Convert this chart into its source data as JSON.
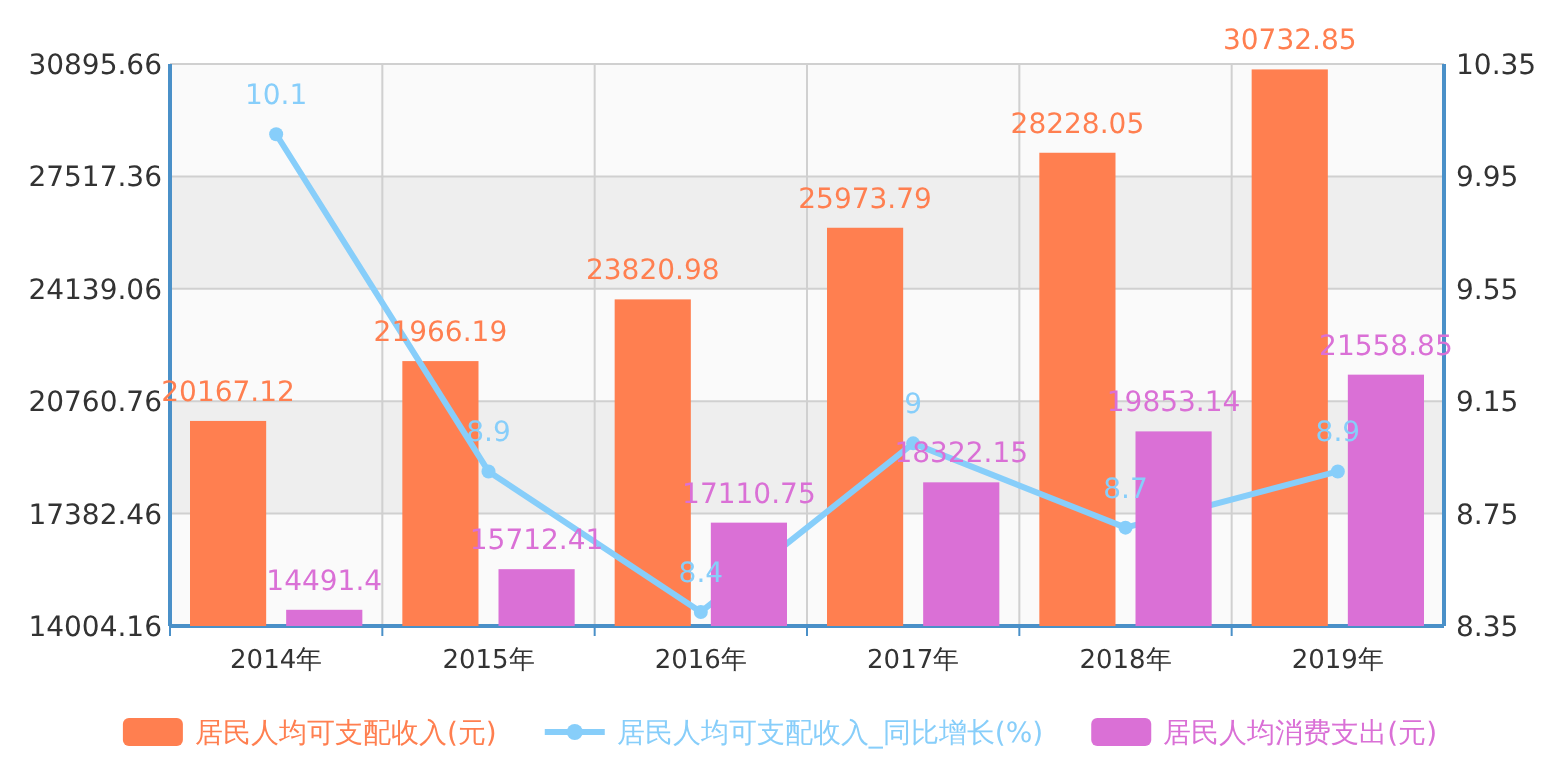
{
  "chart_data": {
    "type": "bar",
    "categories": [
      "2014年",
      "2015年",
      "2016年",
      "2017年",
      "2018年",
      "2019年"
    ],
    "series": [
      {
        "name": "居民人均可支配收入(元)",
        "color": "#ff7f50",
        "values": [
          20167.12,
          21966.19,
          23820.98,
          25973.79,
          28228.05,
          30732.85
        ]
      },
      {
        "name": "居民人均可支配收入_同比增长(%)",
        "type": "line",
        "axis": "y2",
        "marker": "circle",
        "color": "#87cefa",
        "values": [
          10.1,
          8.9,
          8.4,
          9,
          8.7,
          8.9
        ]
      },
      {
        "name": "居民人均消费支出(元)",
        "color": "#da70d6",
        "values": [
          14491.4,
          15712.41,
          17110.75,
          18322.15,
          19853.14,
          21558.85
        ]
      }
    ],
    "ylim": [
      14004.16,
      30895.66
    ],
    "yticks": [
      14004.16,
      17382.46,
      20760.76,
      24139.06,
      27517.36,
      30895.66
    ],
    "y2lim": [
      8.35,
      10.35
    ],
    "y2ticks": [
      8.35,
      8.75,
      9.15,
      9.55,
      9.95,
      10.35
    ],
    "grid": true,
    "legend": "bottom",
    "data_labels": true
  }
}
